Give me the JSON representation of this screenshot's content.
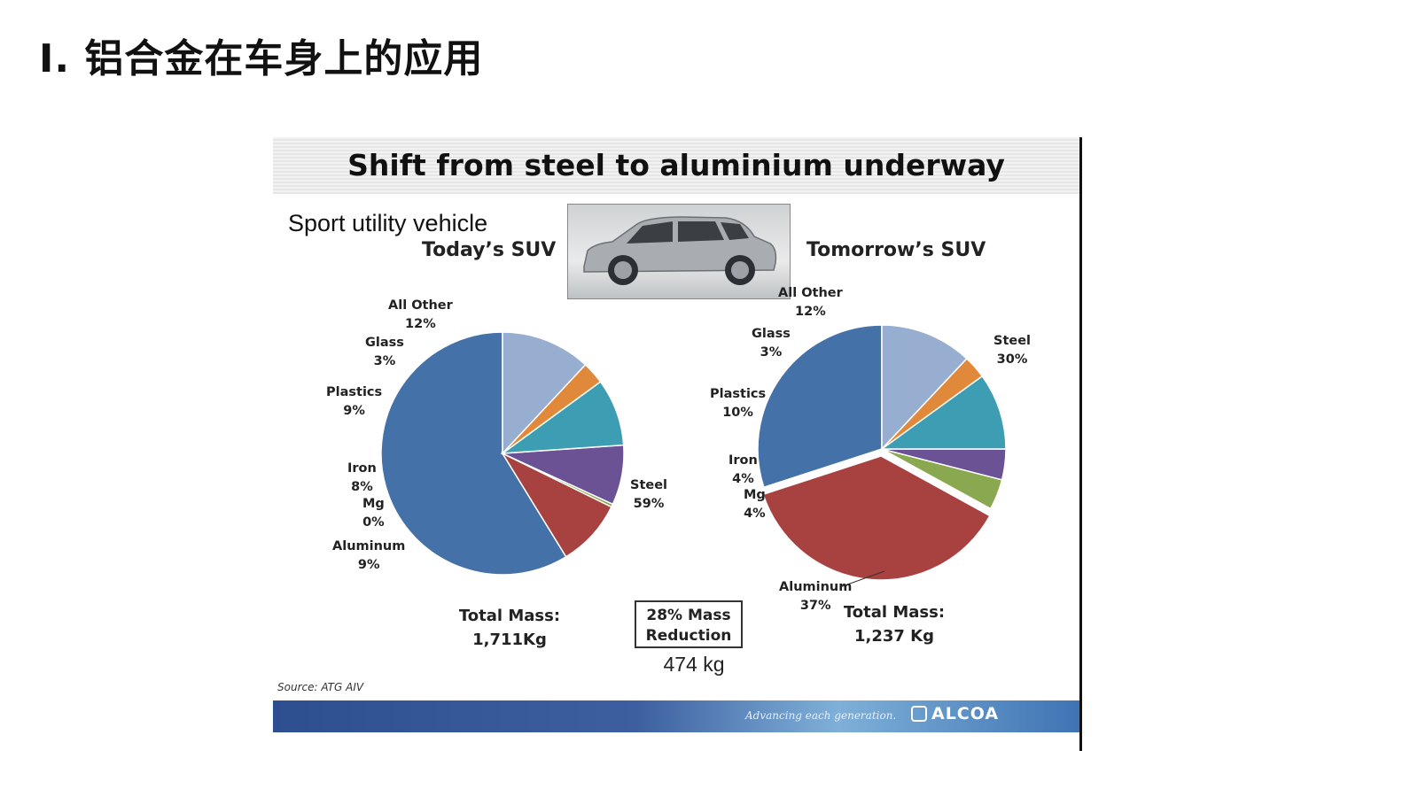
{
  "page_title": "Ⅰ. 铝合金在车身上的应用",
  "slide": {
    "title": "Shift from steel to aluminium underway",
    "subtitle": "Sport utility vehicle",
    "today_heading": "Today’s SUV",
    "tomorrow_heading": "Tomorrow’s SUV",
    "today_total_label": "Total Mass:",
    "today_total_value": "1,711Kg",
    "tomorrow_total_label": "Total Mass:",
    "tomorrow_total_value": "1,237 Kg",
    "reduction_line1": "28% Mass",
    "reduction_line2": "Reduction",
    "kg_saved": "474 kg",
    "source": "Source: ATG AIV",
    "tagline": "Advancing each generation.",
    "brand": "ALCOA"
  },
  "colors": {
    "steel": "#4472a8",
    "aluminum": "#a84240",
    "mg": "#8aa84f",
    "iron": "#6a5295",
    "plastics": "#3d9db3",
    "glass": "#e0893a",
    "all_other": "#97aed1"
  },
  "chart_data": [
    {
      "type": "pie",
      "title": "Today’s SUV",
      "total": "1,711Kg",
      "slices": [
        {
          "name": "Steel",
          "label": "59%",
          "value": 59,
          "color": "#4472a8"
        },
        {
          "name": "Aluminum",
          "label": "9%",
          "value": 9,
          "color": "#a84240"
        },
        {
          "name": "Mg",
          "label": "0%",
          "value": 0.4,
          "color": "#8aa84f"
        },
        {
          "name": "Iron",
          "label": "8%",
          "value": 8,
          "color": "#6a5295"
        },
        {
          "name": "Plastics",
          "label": "9%",
          "value": 9,
          "color": "#3d9db3"
        },
        {
          "name": "Glass",
          "label": "3%",
          "value": 3,
          "color": "#e0893a"
        },
        {
          "name": "All Other",
          "label": "12%",
          "value": 12,
          "color": "#97aed1"
        }
      ]
    },
    {
      "type": "pie",
      "title": "Tomorrow’s SUV",
      "total": "1,237 Kg",
      "slices": [
        {
          "name": "Steel",
          "label": "30%",
          "value": 30,
          "color": "#4472a8"
        },
        {
          "name": "Aluminum",
          "label": "37%",
          "value": 37,
          "color": "#a84240",
          "exploded": true
        },
        {
          "name": "Mg",
          "label": "4%",
          "value": 4,
          "color": "#8aa84f"
        },
        {
          "name": "Iron",
          "label": "4%",
          "value": 4,
          "color": "#6a5295"
        },
        {
          "name": "Plastics",
          "label": "10%",
          "value": 10,
          "color": "#3d9db3"
        },
        {
          "name": "Glass",
          "label": "3%",
          "value": 3,
          "color": "#e0893a"
        },
        {
          "name": "All Other",
          "label": "12%",
          "value": 12,
          "color": "#97aed1"
        }
      ]
    }
  ]
}
